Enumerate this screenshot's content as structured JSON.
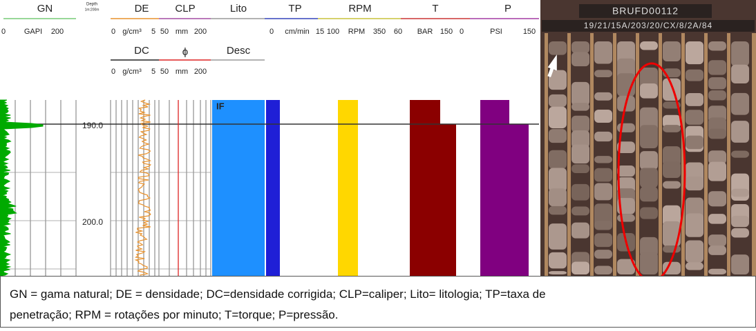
{
  "log_header": {
    "row1": {
      "gn": "GN",
      "depth": "Depth",
      "depth_scale": "1m:200m",
      "de": "DE",
      "clp": "CLP",
      "lito": "Lito",
      "tp": "TP",
      "rpm": "RPM",
      "t": "T",
      "p": "P"
    },
    "row1_scale": {
      "gn_min": "0",
      "gn_unit": "GAPI",
      "gn_max": "200",
      "de_min": "0",
      "de_unit": "g/cm³",
      "de_max": "5",
      "clp_min": "50",
      "clp_unit": "mm",
      "clp_max": "200",
      "tp_min": "0",
      "tp_unit": "cm/min",
      "tp_max": "15",
      "rpm_min": "100",
      "rpm_unit": "RPM",
      "rpm_max": "350",
      "t_min": "60",
      "t_unit": "BAR",
      "t_max": "150",
      "p_min": "0",
      "p_unit": "PSI",
      "p_max": "150"
    },
    "row2": {
      "dc": "DC",
      "phi": "ϕ",
      "desc": "Desc"
    },
    "row2_scale": {
      "dc_min": "0",
      "dc_unit": "g/cm³",
      "dc_max": "5",
      "phi_min": "50",
      "phi_unit": "mm",
      "phi_max": "200"
    }
  },
  "log_body": {
    "depths": [
      "190.0",
      "200.0"
    ],
    "lithology": "IF"
  },
  "photo": {
    "box_label": "BRUFD00112",
    "box_code": "19/21/15A/203/20/CX/8/2A/84"
  },
  "caption": {
    "lines": [
      "GN = gama natural; DE = densidade; DC=densidade corrigida; CLP=caliper; Lito= litologia; TP=taxa de",
      "penetração; RPM = rotações por minuto; T=torque; P=pressão."
    ]
  }
}
